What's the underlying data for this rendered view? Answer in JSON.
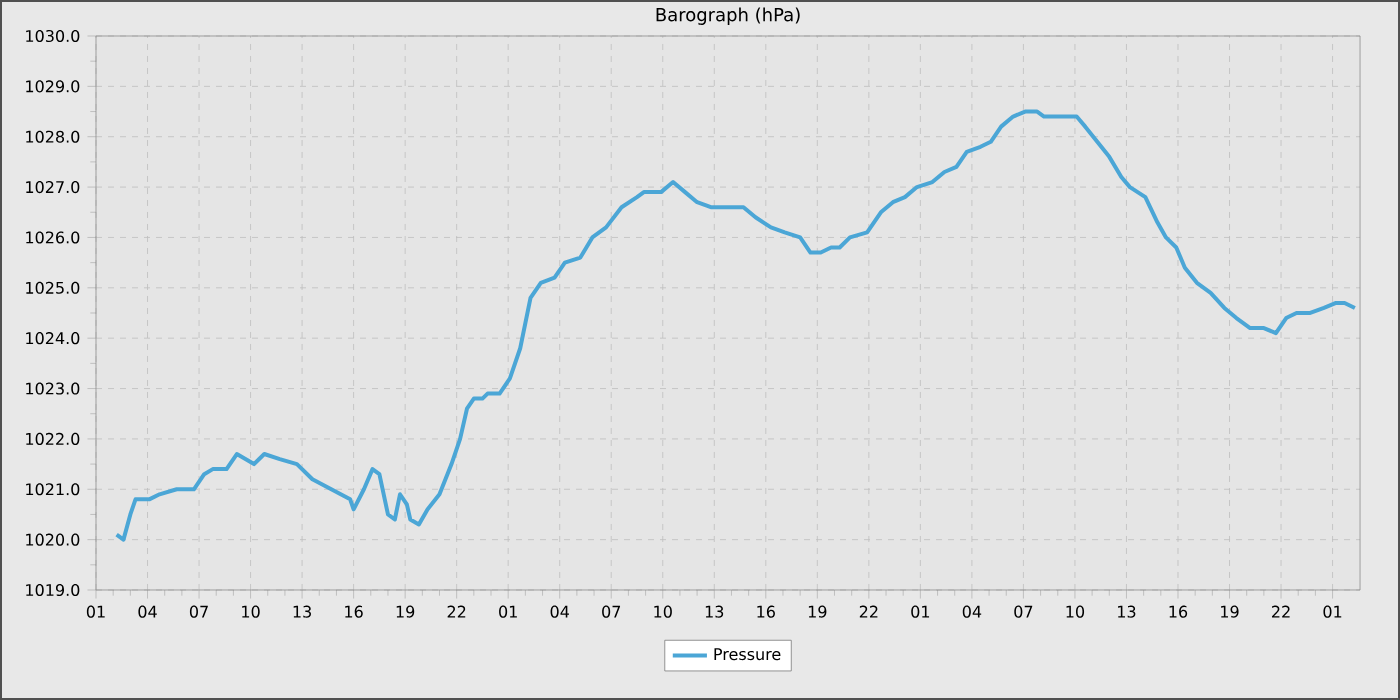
{
  "chart_data": {
    "type": "line",
    "title": "Barograph (hPa)",
    "x": [
      "--01-01T02:12",
      "--01-01T02:36",
      "--01-01T03:00",
      "--01-01T03:18",
      "--01-01T04:06",
      "--01-01T04:42",
      "--01-01T05:42",
      "--01-01T06:42",
      "--01-01T07:18",
      "--01-01T07:48",
      "--01-01T08:36",
      "--01-01T09:12",
      "--01-01T09:42",
      "--01-01T10:12",
      "--01-01T10:48",
      "--01-01T11:42",
      "--01-01T12:42",
      "--01-01T13:36",
      "--01-01T14:42",
      "--01-01T15:48",
      "--01-01T16:00",
      "--01-01T16:36",
      "--01-01T17:06",
      "--01-01T17:30",
      "--01-01T18:00",
      "--01-01T18:24",
      "--01-01T18:42",
      "--01-01T19:06",
      "--01-01T19:18",
      "--01-01T19:48",
      "--01-01T20:18",
      "--01-01T21:00",
      "--01-01T21:42",
      "--01-01T22:12",
      "--01-01T22:36",
      "--01-01T23:00",
      "--01-01T23:30",
      "--01-01T23:48",
      "--01-02T00:30",
      "--01-02T01:06",
      "--01-02T01:42",
      "--01-02T02:18",
      "--01-02T02:54",
      "--01-02T03:42",
      "--01-02T04:18",
      "--01-02T05:12",
      "--01-02T05:54",
      "--01-02T06:42",
      "--01-02T07:36",
      "--01-02T08:30",
      "--01-02T08:54",
      "--01-02T09:54",
      "--01-02T10:36",
      "--01-02T11:18",
      "--01-02T12:00",
      "--01-02T12:48",
      "--01-02T13:54",
      "--01-02T14:42",
      "--01-02T15:24",
      "--01-02T16:18",
      "--01-02T17:06",
      "--01-02T18:00",
      "--01-02T18:36",
      "--01-02T19:12",
      "--01-02T19:48",
      "--01-02T20:18",
      "--01-02T20:54",
      "--01-02T21:54",
      "--01-02T22:42",
      "--01-02T23:24",
      "--01-03T00:06",
      "--01-03T00:48",
      "--01-03T01:42",
      "--01-03T02:24",
      "--01-03T03:06",
      "--01-03T03:42",
      "--01-03T04:30",
      "--01-03T05:06",
      "--01-03T05:42",
      "--01-03T06:24",
      "--01-03T07:06",
      "--01-03T07:48",
      "--01-03T08:12",
      "--01-03T09:12",
      "--01-03T10:06",
      "--01-03T10:36",
      "--01-03T11:18",
      "--01-03T12:00",
      "--01-03T12:42",
      "--01-03T13:12",
      "--01-03T14:06",
      "--01-03T14:48",
      "--01-03T15:18",
      "--01-03T15:54",
      "--01-03T16:24",
      "--01-03T17:06",
      "--01-03T17:54",
      "--01-03T18:42",
      "--01-03T19:24",
      "--01-03T20:12",
      "--01-03T21:00",
      "--01-03T21:42",
      "--01-03T22:18",
      "--01-03T22:54",
      "--01-03T23:42",
      "--01-04T00:30",
      "--01-04T01:12",
      "--01-04T01:42",
      "--01-04T02:18"
    ],
    "series": [
      {
        "name": "Pressure",
        "color": "#4ba6d6",
        "values": [
          1020.1,
          1020.0,
          1020.5,
          1020.8,
          1020.8,
          1020.9,
          1021.0,
          1021.0,
          1021.3,
          1021.4,
          1021.4,
          1021.7,
          1021.6,
          1021.5,
          1021.7,
          1021.6,
          1021.5,
          1021.2,
          1021.0,
          1020.8,
          1020.6,
          1021.0,
          1021.4,
          1021.3,
          1020.5,
          1020.4,
          1020.9,
          1020.7,
          1020.4,
          1020.3,
          1020.6,
          1020.9,
          1021.5,
          1022.0,
          1022.6,
          1022.8,
          1022.8,
          1022.9,
          1022.9,
          1023.2,
          1023.8,
          1024.8,
          1025.1,
          1025.2,
          1025.5,
          1025.6,
          1026.0,
          1026.2,
          1026.6,
          1026.8,
          1026.9,
          1026.9,
          1027.1,
          1026.9,
          1026.7,
          1026.6,
          1026.6,
          1026.6,
          1026.4,
          1026.2,
          1026.1,
          1026.0,
          1025.7,
          1025.7,
          1025.8,
          1025.8,
          1026.0,
          1026.1,
          1026.5,
          1026.7,
          1026.8,
          1027.0,
          1027.1,
          1027.3,
          1027.4,
          1027.7,
          1027.8,
          1027.9,
          1028.2,
          1028.4,
          1028.5,
          1028.5,
          1028.4,
          1028.4,
          1028.4,
          1028.2,
          1027.9,
          1027.6,
          1027.2,
          1027.0,
          1026.8,
          1026.3,
          1026.0,
          1025.8,
          1025.4,
          1025.1,
          1024.9,
          1024.6,
          1024.4,
          1024.2,
          1024.2,
          1024.1,
          1024.4,
          1024.5,
          1024.5,
          1024.6,
          1024.7,
          1024.7,
          1024.6
        ]
      }
    ],
    "xlim": [
      "--01-01T01:00",
      "--01-04T02:36"
    ],
    "ylim": [
      1019,
      1030
    ],
    "xticks": [
      {
        "value": "--01-01T01:00",
        "label": "01"
      },
      {
        "value": "--01-01T04:00",
        "label": "04"
      },
      {
        "value": "--01-01T07:00",
        "label": "07"
      },
      {
        "value": "--01-01T10:00",
        "label": "10"
      },
      {
        "value": "--01-01T13:00",
        "label": "13"
      },
      {
        "value": "--01-01T16:00",
        "label": "16"
      },
      {
        "value": "--01-01T19:00",
        "label": "19"
      },
      {
        "value": "--01-01T22:00",
        "label": "22"
      },
      {
        "value": "--01-02T01:00",
        "label": "01"
      },
      {
        "value": "--01-02T04:00",
        "label": "04"
      },
      {
        "value": "--01-02T07:00",
        "label": "07"
      },
      {
        "value": "--01-02T10:00",
        "label": "10"
      },
      {
        "value": "--01-02T13:00",
        "label": "13"
      },
      {
        "value": "--01-02T16:00",
        "label": "16"
      },
      {
        "value": "--01-02T19:00",
        "label": "19"
      },
      {
        "value": "--01-02T22:00",
        "label": "22"
      },
      {
        "value": "--01-03T01:00",
        "label": "01"
      },
      {
        "value": "--01-03T04:00",
        "label": "04"
      },
      {
        "value": "--01-03T07:00",
        "label": "07"
      },
      {
        "value": "--01-03T10:00",
        "label": "10"
      },
      {
        "value": "--01-03T13:00",
        "label": "13"
      },
      {
        "value": "--01-03T16:00",
        "label": "16"
      },
      {
        "value": "--01-03T19:00",
        "label": "19"
      },
      {
        "value": "--01-03T22:00",
        "label": "22"
      },
      {
        "value": "--01-04T01:00",
        "label": "01"
      }
    ],
    "yticks": [
      {
        "value": 1019,
        "label": "1019.0"
      },
      {
        "value": 1020,
        "label": "1020.0"
      },
      {
        "value": 1021,
        "label": "1021.0"
      },
      {
        "value": 1022,
        "label": "1022.0"
      },
      {
        "value": 1023,
        "label": "1023.0"
      },
      {
        "value": 1024,
        "label": "1024.0"
      },
      {
        "value": 1025,
        "label": "1025.0"
      },
      {
        "value": 1026,
        "label": "1026.0"
      },
      {
        "value": 1027,
        "label": "1027.0"
      },
      {
        "value": 1028,
        "label": "1028.0"
      },
      {
        "value": 1029,
        "label": "1029.0"
      },
      {
        "value": 1030,
        "label": "1030.0"
      }
    ],
    "grid": true,
    "legend": "bottom"
  }
}
